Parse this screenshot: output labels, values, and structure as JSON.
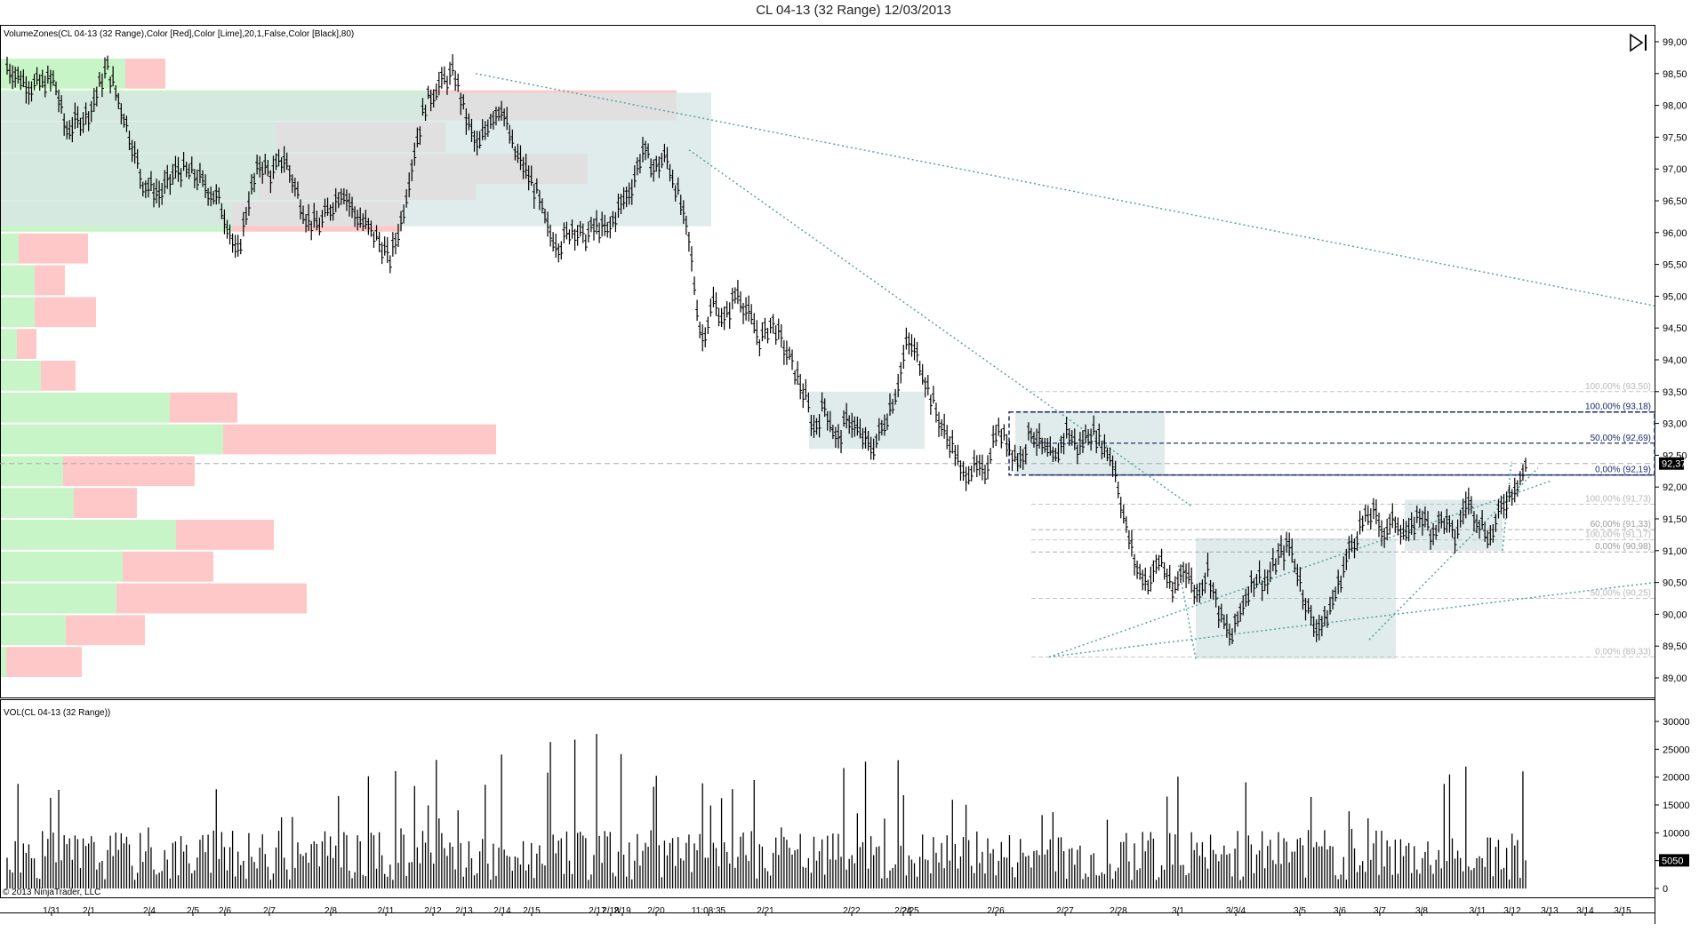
{
  "window": {
    "title": "CL 04-13 (32 Range)  12/03/2013",
    "copyright": "© 2013 NinjaTrader, LLC",
    "play_icon": "skip-forward-icon"
  },
  "chart_data": [
    {
      "type": "bar",
      "subtype": "ohlc-range-bars-with-volume-profile",
      "indicator_label": "VolumeZones(CL 04-13 (32 Range),Color [Red],Color [Lime],20,1,False,Color [Black],80)",
      "ylim": [
        88.75,
        99.25
      ],
      "y_ticks": [
        "99,00",
        "98,50",
        "98,00",
        "97,50",
        "97,00",
        "96,50",
        "96,00",
        "95,50",
        "95,00",
        "94,50",
        "94,00",
        "93,50",
        "93,00",
        "92,50",
        "92,00",
        "91,50",
        "91,00",
        "90,50",
        "90,00",
        "89,50",
        "89,00"
      ],
      "last_price_label": "92,37",
      "last_price": 92.37,
      "x_labels": [
        "1/31",
        "2/1",
        "2/4",
        "2/5",
        "2/6",
        "2/7",
        "2/8",
        "2/11",
        "2/12",
        "2/13",
        "2/14",
        "2/15",
        "2/17",
        "2/18",
        "2/19",
        "2/20",
        "11:08:35",
        "2/21",
        "2/22",
        "2/24",
        "2/25",
        "2/26",
        "2/27",
        "2/28",
        "3/1",
        "3/3/4",
        "3/5",
        "3/6",
        "3/7",
        "3/8",
        "3/11",
        "3/12",
        "3/13",
        "3/14",
        "3/15"
      ],
      "price_path": [
        [
          0,
          98.6
        ],
        [
          0.04,
          98.3
        ],
        [
          0.08,
          98.4
        ],
        [
          0.1,
          97.6
        ],
        [
          0.14,
          97.9
        ],
        [
          0.17,
          98.6
        ],
        [
          0.2,
          97.8
        ],
        [
          0.23,
          96.8
        ],
        [
          0.26,
          96.6
        ],
        [
          0.29,
          97.0
        ],
        [
          0.32,
          96.9
        ],
        [
          0.36,
          96.5
        ],
        [
          0.38,
          96.0
        ],
        [
          0.39,
          95.55
        ],
        [
          0.41,
          96.5
        ],
        [
          0.43,
          97.1
        ],
        [
          0.45,
          96.9
        ],
        [
          0.47,
          97.2
        ],
        [
          0.49,
          96.7
        ],
        [
          0.51,
          96.2
        ],
        [
          0.53,
          96.1
        ],
        [
          0.55,
          96.4
        ],
        [
          0.57,
          96.7
        ],
        [
          0.59,
          96.3
        ],
        [
          0.61,
          96.1
        ],
        [
          0.63,
          95.9
        ],
        [
          0.65,
          95.55
        ],
        [
          0.67,
          96.2
        ],
        [
          0.69,
          97.2
        ],
        [
          0.71,
          98.0
        ],
        [
          0.73,
          98.3
        ],
        [
          0.76,
          98.5
        ],
        [
          0.78,
          97.8
        ],
        [
          0.8,
          97.3
        ],
        [
          0.82,
          97.8
        ],
        [
          0.84,
          98.0
        ],
        [
          0.86,
          97.3
        ],
        [
          0.88,
          97.0
        ],
        [
          0.9,
          96.6
        ],
        [
          0.92,
          96.0
        ],
        [
          0.94,
          95.8
        ],
        [
          0.96,
          96.1
        ],
        [
          0.98,
          95.9
        ],
        [
          1.0,
          96.1
        ],
        [
          1.02,
          96.0
        ],
        [
          1.04,
          96.4
        ],
        [
          1.06,
          96.7
        ],
        [
          1.08,
          97.3
        ],
        [
          1.1,
          97.0
        ],
        [
          1.12,
          97.2
        ],
        [
          1.14,
          96.6
        ],
        [
          1.16,
          95.8
        ],
        [
          1.17,
          95.0
        ],
        [
          1.18,
          94.3
        ],
        [
          1.2,
          94.9
        ],
        [
          1.22,
          94.6
        ],
        [
          1.24,
          95.1
        ],
        [
          1.26,
          94.7
        ],
        [
          1.28,
          94.3
        ],
        [
          1.3,
          94.6
        ],
        [
          1.32,
          94.2
        ],
        [
          1.34,
          93.8
        ],
        [
          1.36,
          93.3
        ],
        [
          1.37,
          92.9
        ],
        [
          1.39,
          93.3
        ],
        [
          1.41,
          92.7
        ],
        [
          1.43,
          93.1
        ],
        [
          1.45,
          92.8
        ],
        [
          1.47,
          92.6
        ],
        [
          1.49,
          93.0
        ],
        [
          1.51,
          93.5
        ],
        [
          1.53,
          94.3
        ],
        [
          1.55,
          94.0
        ],
        [
          1.57,
          93.4
        ],
        [
          1.59,
          92.9
        ],
        [
          1.61,
          92.6
        ],
        [
          1.62,
          92.2
        ],
        [
          1.64,
          92.3
        ],
        [
          1.66,
          92.2
        ],
        [
          1.68,
          92.9
        ],
        [
          1.7,
          92.7
        ],
        [
          1.72,
          92.4
        ],
        [
          1.74,
          92.9
        ],
        [
          1.76,
          92.6
        ],
        [
          1.78,
          92.4
        ],
        [
          1.8,
          92.9
        ],
        [
          1.82,
          92.6
        ],
        [
          1.84,
          92.9
        ],
        [
          1.86,
          92.7
        ],
        [
          1.88,
          92.4
        ],
        [
          1.9,
          91.4
        ],
        [
          1.92,
          90.7
        ],
        [
          1.94,
          90.5
        ],
        [
          1.96,
          90.9
        ],
        [
          1.98,
          90.3
        ],
        [
          2.0,
          90.8
        ],
        [
          2.02,
          90.3
        ],
        [
          2.04,
          90.7
        ],
        [
          2.06,
          90.0
        ],
        [
          2.08,
          89.6
        ],
        [
          2.1,
          90.2
        ],
        [
          2.12,
          90.6
        ],
        [
          2.14,
          90.5
        ],
        [
          2.16,
          90.9
        ],
        [
          2.18,
          91.1
        ],
        [
          2.2,
          90.4
        ],
        [
          2.22,
          89.8
        ],
        [
          2.24,
          89.9
        ],
        [
          2.26,
          90.4
        ],
        [
          2.28,
          91.0
        ],
        [
          2.3,
          91.4
        ],
        [
          2.32,
          91.6
        ],
        [
          2.34,
          91.3
        ],
        [
          2.36,
          91.5
        ],
        [
          2.38,
          91.2
        ],
        [
          2.4,
          91.6
        ],
        [
          2.42,
          91.3
        ],
        [
          2.44,
          91.5
        ],
        [
          2.46,
          91.2
        ],
        [
          2.48,
          91.8
        ],
        [
          2.5,
          91.5
        ],
        [
          2.52,
          91.2
        ],
        [
          2.54,
          91.7
        ],
        [
          2.56,
          92.0
        ],
        [
          2.58,
          92.3
        ]
      ],
      "volume": {
        "label": "VOL(CL 04-13 (32 Range))",
        "ylim": [
          0,
          32000
        ],
        "y_ticks": [
          "30000",
          "25000",
          "20000",
          "15000",
          "10000",
          "5000",
          "0"
        ],
        "last_value_label": "5050",
        "last_value": 5050
      },
      "volume_zones": [
        {
          "price": 98.5,
          "buy": 140,
          "sell": 45
        },
        {
          "price": 98.0,
          "buy": 480,
          "sell": 280
        },
        {
          "price": 97.5,
          "buy": 310,
          "sell": 190
        },
        {
          "price": 97.0,
          "buy": 320,
          "sell": 340
        },
        {
          "price": 96.75,
          "buy": 290,
          "sell": 245
        },
        {
          "price": 96.25,
          "buy": 260,
          "sell": 190
        },
        {
          "price": 95.75,
          "buy": 20,
          "sell": 78
        },
        {
          "price": 95.25,
          "buy": 38,
          "sell": 34
        },
        {
          "price": 94.75,
          "buy": 38,
          "sell": 69
        },
        {
          "price": 94.25,
          "buy": 18,
          "sell": 22
        },
        {
          "price": 93.75,
          "buy": 45,
          "sell": 39
        },
        {
          "price": 93.25,
          "buy": 190,
          "sell": 76
        },
        {
          "price": 92.75,
          "buy": 250,
          "sell": 307
        },
        {
          "price": 92.25,
          "buy": 70,
          "sell": 148
        },
        {
          "price": 91.75,
          "buy": 82,
          "sell": 71
        },
        {
          "price": 91.25,
          "buy": 197,
          "sell": 110
        },
        {
          "price": 90.75,
          "buy": 137,
          "sell": 102
        },
        {
          "price": 90.25,
          "buy": 130,
          "sell": 214
        },
        {
          "price": 89.75,
          "buy": 73,
          "sell": 89
        },
        {
          "price": 89.25,
          "buy": 6,
          "sell": 85
        }
      ],
      "fib_labels": [
        {
          "text": "100,00% (93,50)",
          "price": 93.5,
          "color": "#b8b8b8"
        },
        {
          "text": "100,00% (93,18)",
          "price": 93.18,
          "color": "#1a2a6a"
        },
        {
          "text": "50,00% (92,69)",
          "price": 92.69,
          "color": "#1a2a6a"
        },
        {
          "text": "0,00% (92,19)",
          "price": 92.19,
          "color": "#1a2a6a"
        },
        {
          "text": "100,00% (91,73)",
          "price": 91.73,
          "color": "#b8b8b8"
        },
        {
          "text": "60,00% (91,33)",
          "price": 91.33,
          "color": "#9a9a9a"
        },
        {
          "text": "100,00% (91,17)",
          "price": 91.17,
          "color": "#b8b8b8"
        },
        {
          "text": "0,00% (90,98)",
          "price": 90.98,
          "color": "#9a9a9a"
        },
        {
          "text": "50,00% (90,25)",
          "price": 90.25,
          "color": "#b8b8b8"
        },
        {
          "text": "0,00% (89,33)",
          "price": 89.33,
          "color": "#b8b8b8"
        }
      ],
      "colors": {
        "buy_zone": "#c8f5c8",
        "sell_zone": "#ffc8c8",
        "value_area": "#d8e6e6",
        "trendline": "#5aa0a0",
        "fib_dark": "#1a2a6a",
        "bars": "#000000"
      }
    }
  ]
}
